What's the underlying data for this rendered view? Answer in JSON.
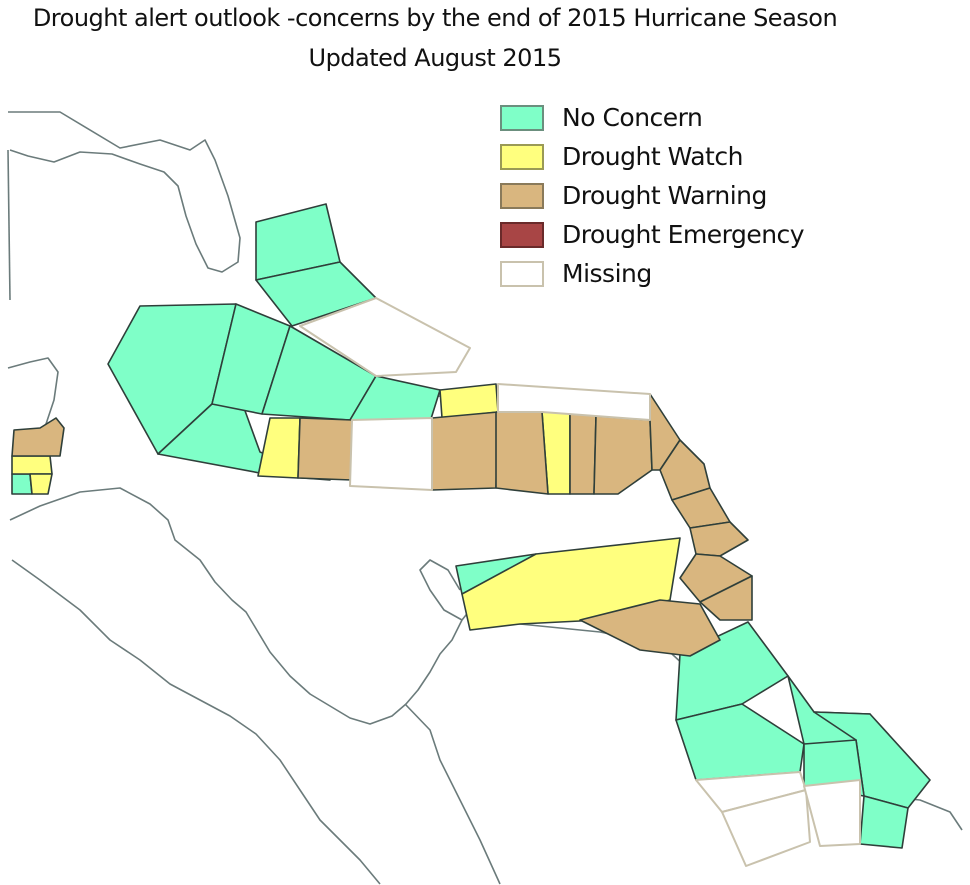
{
  "title": {
    "line1": "Drought alert outlook -concerns by the end of 2015 Hurricane Season",
    "line2": "Updated August 2015"
  },
  "legend": [
    {
      "label": "No Concern",
      "color": "#7fffc8",
      "border": "#6b8f7e",
      "key": "no-concern"
    },
    {
      "label": "Drought Watch",
      "color": "#ffff7e",
      "border": "#9a9a55",
      "key": "drought-watch"
    },
    {
      "label": "Drought Warning",
      "color": "#d9b67f",
      "border": "#8a7a5a",
      "key": "drought-warning"
    },
    {
      "label": "Drought Emergency",
      "color": "#a84545",
      "border": "#6a2a2a",
      "key": "drought-emergency"
    },
    {
      "label": "Missing",
      "color": "#ffffff",
      "border": "#c9c2ad",
      "key": "missing"
    }
  ],
  "colors": {
    "coastline": "#6b7b7b",
    "zone_border": "#2f3f3a",
    "missing_border": "#c9c2ad"
  }
}
